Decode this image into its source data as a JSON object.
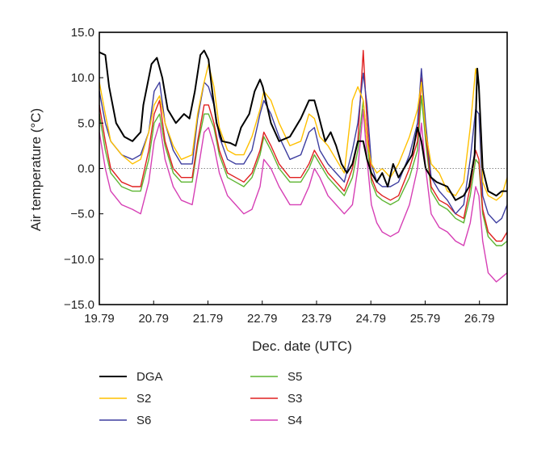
{
  "chart_data": {
    "type": "line",
    "title": "",
    "xlabel": "Dec. date (UTC)",
    "ylabel": "Air temperature (°C)",
    "xlim": [
      19.79,
      27.3
    ],
    "ylim": [
      -15.0,
      15.0
    ],
    "xticks": [
      19.79,
      20.79,
      21.79,
      22.79,
      23.79,
      24.79,
      25.79,
      26.79
    ],
    "xtick_labels": [
      "19.79",
      "20.79",
      "21.79",
      "22.79",
      "23.79",
      "24.79",
      "25.79",
      "26.79"
    ],
    "yticks": [
      15,
      10,
      5,
      0,
      -5,
      -10,
      -15
    ],
    "ytick_labels": [
      "15.0",
      "10.0",
      "5.0",
      "0.0",
      "−5.0",
      "−10.0",
      "−15.0"
    ],
    "reference_line": 0.0,
    "legend_position": "bottom",
    "series": [
      {
        "name": "DGA",
        "color": "#000000",
        "x": [
          19.79,
          19.9,
          19.97,
          20.1,
          20.25,
          20.4,
          20.55,
          20.6,
          20.75,
          20.85,
          20.95,
          21.05,
          21.2,
          21.35,
          21.45,
          21.55,
          21.65,
          21.72,
          21.8,
          21.88,
          21.95,
          22.05,
          22.2,
          22.3,
          22.4,
          22.55,
          22.65,
          22.75,
          22.8,
          22.95,
          23.1,
          23.3,
          23.5,
          23.65,
          23.75,
          23.82,
          23.95,
          24.05,
          24.15,
          24.25,
          24.35,
          24.45,
          24.55,
          24.65,
          24.72,
          24.8,
          24.9,
          25.0,
          25.1,
          25.2,
          25.3,
          25.4,
          25.55,
          25.65,
          25.72,
          25.8,
          25.9,
          26.0,
          26.2,
          26.35,
          26.5,
          26.6,
          26.7,
          26.75,
          26.78,
          26.85,
          26.95,
          27.1,
          27.2,
          27.3
        ],
        "y": [
          12.8,
          12.5,
          9.0,
          5.0,
          3.5,
          3.0,
          4.0,
          7.0,
          11.5,
          12.2,
          10.0,
          6.5,
          5.0,
          6.0,
          5.5,
          8.5,
          12.5,
          13.0,
          12.0,
          8.0,
          5.0,
          3.0,
          2.8,
          2.5,
          4.5,
          6.0,
          8.5,
          9.8,
          9.0,
          5.0,
          3.0,
          3.5,
          5.5,
          7.5,
          7.5,
          6.0,
          3.0,
          4.0,
          2.5,
          0.5,
          -0.5,
          0.5,
          3.0,
          3.0,
          1.0,
          -0.5,
          -1.5,
          -0.5,
          -2.0,
          0.5,
          -1.0,
          0.0,
          1.5,
          4.5,
          3.0,
          0.0,
          -1.0,
          -1.5,
          -2.0,
          -3.5,
          -3.0,
          -2.0,
          1.5,
          11.0,
          9.0,
          0.0,
          -2.5,
          -3.0,
          -2.5,
          -2.5
        ]
      },
      {
        "name": "S2",
        "color": "#ffc000",
        "x": [
          19.79,
          19.9,
          20.0,
          20.2,
          20.4,
          20.55,
          20.7,
          20.8,
          20.9,
          21.0,
          21.15,
          21.3,
          21.5,
          21.6,
          21.7,
          21.8,
          21.9,
          22.0,
          22.15,
          22.3,
          22.45,
          22.6,
          22.75,
          22.82,
          22.95,
          23.1,
          23.3,
          23.5,
          23.65,
          23.75,
          23.85,
          24.0,
          24.15,
          24.3,
          24.45,
          24.55,
          24.65,
          24.72,
          24.8,
          24.9,
          25.0,
          25.15,
          25.3,
          25.5,
          25.65,
          25.72,
          25.8,
          25.9,
          26.05,
          26.2,
          26.35,
          26.5,
          26.62,
          26.72,
          26.78,
          26.85,
          26.95,
          27.1,
          27.2,
          27.3
        ],
        "y": [
          9.5,
          6.0,
          3.0,
          1.5,
          0.5,
          1.0,
          4.0,
          7.0,
          8.0,
          5.0,
          2.5,
          1.0,
          1.5,
          6.0,
          9.0,
          11.5,
          9.0,
          4.5,
          2.0,
          1.5,
          1.5,
          3.5,
          6.5,
          8.5,
          7.5,
          5.0,
          2.5,
          3.0,
          6.0,
          5.5,
          3.5,
          2.5,
          1.0,
          -0.5,
          7.5,
          9.0,
          7.5,
          3.0,
          0.5,
          -0.5,
          0.0,
          -1.0,
          0.5,
          3.5,
          6.5,
          9.5,
          4.0,
          0.5,
          -0.5,
          -2.5,
          -3.0,
          -1.5,
          4.5,
          11.0,
          9.0,
          -1.5,
          -3.0,
          -3.5,
          -3.0,
          -1.0
        ]
      },
      {
        "name": "S6",
        "color": "#3d3d9f",
        "x": [
          19.79,
          19.9,
          20.0,
          20.2,
          20.4,
          20.55,
          20.7,
          20.8,
          20.9,
          21.0,
          21.15,
          21.3,
          21.5,
          21.6,
          21.72,
          21.8,
          21.9,
          22.0,
          22.15,
          22.3,
          22.45,
          22.6,
          22.75,
          22.82,
          22.95,
          23.1,
          23.3,
          23.5,
          23.65,
          23.75,
          23.85,
          24.0,
          24.15,
          24.3,
          24.45,
          24.55,
          24.65,
          24.72,
          24.8,
          24.9,
          25.0,
          25.15,
          25.3,
          25.5,
          25.65,
          25.72,
          25.8,
          25.9,
          26.05,
          26.2,
          26.35,
          26.5,
          26.62,
          26.72,
          26.78,
          26.85,
          26.95,
          27.1,
          27.2,
          27.3
        ],
        "y": [
          8.5,
          5.0,
          3.0,
          1.5,
          1.0,
          1.5,
          4.0,
          8.5,
          9.5,
          5.0,
          2.0,
          0.5,
          0.5,
          5.5,
          9.5,
          9.0,
          7.0,
          3.5,
          1.0,
          0.5,
          0.5,
          2.0,
          6.0,
          7.5,
          6.0,
          3.5,
          1.0,
          1.5,
          4.0,
          4.5,
          2.0,
          0.5,
          -0.5,
          -1.5,
          2.0,
          5.0,
          10.5,
          7.0,
          0.5,
          -1.5,
          -2.0,
          -2.0,
          -1.5,
          1.5,
          5.0,
          11.0,
          5.0,
          -1.0,
          -2.5,
          -3.5,
          -5.0,
          -4.0,
          1.0,
          6.5,
          6.0,
          -3.0,
          -5.0,
          -6.0,
          -5.5,
          -4.0
        ]
      },
      {
        "name": "S5",
        "color": "#5cb531",
        "x": [
          19.79,
          19.9,
          20.0,
          20.2,
          20.4,
          20.55,
          20.7,
          20.8,
          20.9,
          21.0,
          21.15,
          21.3,
          21.5,
          21.6,
          21.72,
          21.8,
          21.9,
          22.0,
          22.15,
          22.3,
          22.45,
          22.6,
          22.75,
          22.82,
          22.95,
          23.1,
          23.3,
          23.5,
          23.65,
          23.75,
          23.85,
          24.0,
          24.15,
          24.3,
          24.45,
          24.55,
          24.65,
          24.72,
          24.8,
          24.9,
          25.0,
          25.15,
          25.3,
          25.5,
          25.65,
          25.72,
          25.8,
          25.9,
          26.05,
          26.2,
          26.35,
          26.5,
          26.62,
          26.72,
          26.78,
          26.85,
          26.95,
          27.1,
          27.2,
          27.3
        ],
        "y": [
          6.0,
          2.0,
          -0.5,
          -2.0,
          -2.5,
          -2.5,
          1.0,
          5.0,
          6.0,
          2.5,
          -0.5,
          -1.5,
          -1.5,
          2.5,
          6.0,
          6.0,
          4.5,
          1.5,
          -1.0,
          -1.5,
          -2.0,
          -1.0,
          1.5,
          3.5,
          2.0,
          0.0,
          -1.5,
          -1.5,
          0.0,
          1.5,
          0.5,
          -1.0,
          -2.0,
          -3.0,
          -1.0,
          2.0,
          7.5,
          3.0,
          -1.5,
          -3.0,
          -3.5,
          -4.0,
          -3.5,
          -1.0,
          2.0,
          8.0,
          3.0,
          -2.5,
          -4.0,
          -4.5,
          -5.5,
          -6.0,
          -3.0,
          1.0,
          0.5,
          -5.0,
          -7.5,
          -8.5,
          -8.5,
          -8.0
        ]
      },
      {
        "name": "S3",
        "color": "#e02020",
        "x": [
          19.79,
          19.9,
          20.0,
          20.2,
          20.4,
          20.55,
          20.7,
          20.8,
          20.9,
          21.0,
          21.15,
          21.3,
          21.5,
          21.6,
          21.72,
          21.8,
          21.9,
          22.0,
          22.15,
          22.3,
          22.45,
          22.6,
          22.75,
          22.82,
          22.95,
          23.1,
          23.3,
          23.5,
          23.65,
          23.75,
          23.85,
          24.0,
          24.15,
          24.3,
          24.45,
          24.55,
          24.65,
          24.72,
          24.8,
          24.9,
          25.0,
          25.15,
          25.3,
          25.5,
          25.65,
          25.72,
          25.8,
          25.9,
          26.05,
          26.2,
          26.35,
          26.5,
          26.62,
          26.72,
          26.78,
          26.85,
          26.95,
          27.1,
          27.2,
          27.3
        ],
        "y": [
          7.0,
          3.0,
          0.0,
          -1.5,
          -2.0,
          -2.0,
          2.0,
          6.0,
          7.5,
          3.0,
          0.0,
          -1.0,
          -1.0,
          3.0,
          7.0,
          7.0,
          5.0,
          2.0,
          -0.5,
          -1.0,
          -1.5,
          -0.5,
          2.0,
          4.0,
          2.5,
          0.5,
          -1.0,
          -1.0,
          0.5,
          2.0,
          1.0,
          -0.5,
          -1.5,
          -2.5,
          0.0,
          3.0,
          13.0,
          5.0,
          -1.0,
          -2.5,
          -3.0,
          -3.5,
          -3.0,
          0.0,
          3.0,
          10.0,
          4.0,
          -2.0,
          -3.5,
          -4.0,
          -5.0,
          -5.5,
          -2.0,
          2.0,
          1.0,
          -4.5,
          -7.0,
          -8.0,
          -8.0,
          -7.0
        ]
      },
      {
        "name": "S4",
        "color": "#d63fb5",
        "x": [
          19.79,
          19.9,
          20.0,
          20.2,
          20.4,
          20.55,
          20.7,
          20.8,
          20.9,
          21.0,
          21.15,
          21.3,
          21.5,
          21.6,
          21.72,
          21.8,
          21.9,
          22.0,
          22.15,
          22.3,
          22.45,
          22.6,
          22.75,
          22.82,
          22.95,
          23.1,
          23.3,
          23.5,
          23.65,
          23.75,
          23.85,
          24.0,
          24.15,
          24.3,
          24.45,
          24.55,
          24.65,
          24.72,
          24.8,
          24.9,
          25.0,
          25.15,
          25.3,
          25.5,
          25.65,
          25.72,
          25.8,
          25.9,
          26.05,
          26.2,
          26.35,
          26.5,
          26.62,
          26.72,
          26.78,
          26.85,
          26.95,
          27.1,
          27.2,
          27.3
        ],
        "y": [
          4.0,
          0.0,
          -2.5,
          -4.0,
          -4.5,
          -5.0,
          -1.5,
          3.0,
          5.0,
          1.0,
          -2.0,
          -3.5,
          -4.0,
          -0.5,
          4.0,
          4.5,
          2.5,
          -0.5,
          -3.0,
          -4.0,
          -5.0,
          -4.5,
          -2.0,
          1.0,
          0.0,
          -2.0,
          -4.0,
          -4.0,
          -2.0,
          0.0,
          -1.0,
          -3.0,
          -4.0,
          -5.0,
          -4.0,
          0.0,
          6.5,
          1.0,
          -4.0,
          -6.0,
          -7.0,
          -7.5,
          -7.0,
          -4.0,
          0.0,
          5.0,
          0.0,
          -5.0,
          -6.5,
          -7.0,
          -8.0,
          -8.5,
          -6.0,
          -2.0,
          -3.0,
          -8.0,
          -11.5,
          -12.5,
          -12.0,
          -11.5
        ]
      }
    ]
  }
}
